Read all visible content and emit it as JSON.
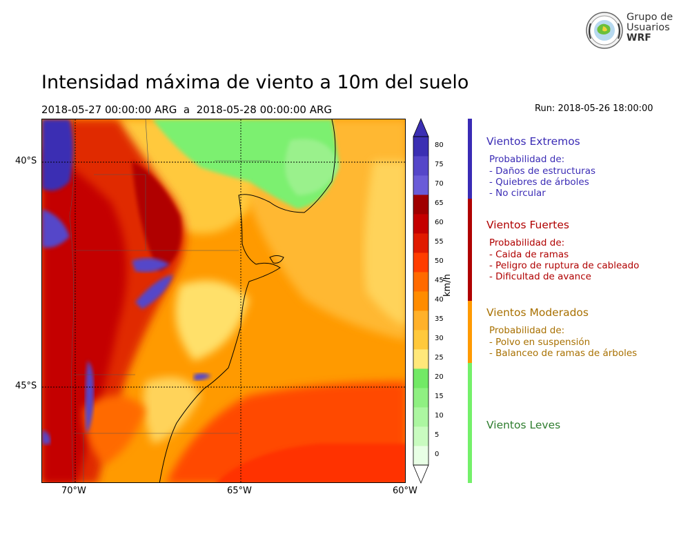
{
  "header": {
    "title": "Intensidad máxima de viento a 10m del suelo",
    "subtitle": "2018-05-27 00:00:00 ARG  a  2018-05-28 00:00:00 ARG",
    "run": "Run: 2018-05-26 18:00:00"
  },
  "logo": {
    "line1": "Grupo de",
    "line2": "Usuarios",
    "line3": "WRF"
  },
  "map": {
    "lat_ticks": [
      "40°S",
      "45°S"
    ],
    "lon_ticks": [
      "70°W",
      "65°W",
      "60°W"
    ]
  },
  "colorbar": {
    "units": "km/h",
    "levels": [
      "0",
      "5",
      "10",
      "15",
      "20",
      "25",
      "30",
      "35",
      "40",
      "45",
      "50",
      "55",
      "60",
      "65",
      "70",
      "75",
      "80"
    ],
    "colors": [
      "#e8ffe5",
      "#c9fbc0",
      "#acf6a1",
      "#8ff082",
      "#72e966",
      "#ffe87a",
      "#ffc93c",
      "#ffb12a",
      "#ff8c00",
      "#ff6a00",
      "#ff3d00",
      "#e01a00",
      "#c40000",
      "#a00000",
      "#6a5cd8",
      "#5546c9",
      "#3b2fb3"
    ],
    "high_end_color": "#3b2fb3",
    "low_end_color": "#ffffff"
  },
  "categories": [
    {
      "title": "Vientos Extremos",
      "color": "#3a2bb5",
      "heading": "Probabilidad de:",
      "items": [
        "- Daños de estructuras",
        "- Quiebres de árboles",
        "- No circular"
      ]
    },
    {
      "title": "Vientos Fuertes",
      "color": "#b00000",
      "heading": "Probabilidad de:",
      "items": [
        "- Caida de ramas",
        "- Peligro de ruptura de cableado",
        "- Dificultad de avance"
      ]
    },
    {
      "title": "Vientos Moderados",
      "color": "#a87000",
      "bar_color": "#ff9a00",
      "heading": "Probabilidad de:",
      "items": [
        "- Polvo en suspensión",
        "- Balanceo de ramas de árboles"
      ]
    },
    {
      "title": "Vientos Leves",
      "color": "#2e7d2e",
      "bar_color": "#74f06a"
    }
  ]
}
